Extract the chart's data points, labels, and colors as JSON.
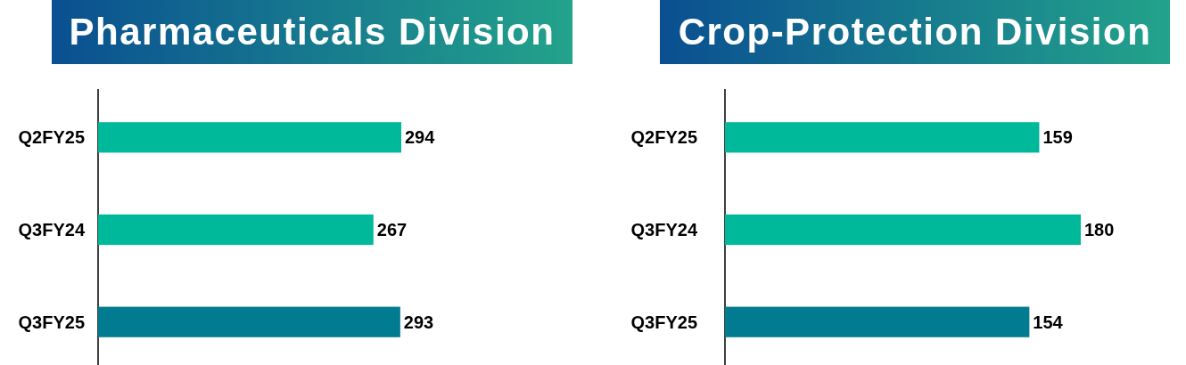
{
  "chart_data": [
    {
      "type": "bar",
      "orientation": "horizontal",
      "title": "Pharmaceuticals Division",
      "categories": [
        "Q2FY25",
        "Q3FY24",
        "Q3FY25"
      ],
      "values": [
        294,
        267,
        293
      ],
      "colors": [
        "#00b89a",
        "#00b89a",
        "#007b8f"
      ],
      "data_labels": true
    },
    {
      "type": "bar",
      "orientation": "horizontal",
      "title": "Crop-Protection Division",
      "categories": [
        "Q2FY25",
        "Q3FY24",
        "Q3FY25"
      ],
      "values": [
        159,
        180,
        154
      ],
      "colors": [
        "#00b89a",
        "#00b89a",
        "#007b8f"
      ],
      "data_labels": true
    }
  ]
}
